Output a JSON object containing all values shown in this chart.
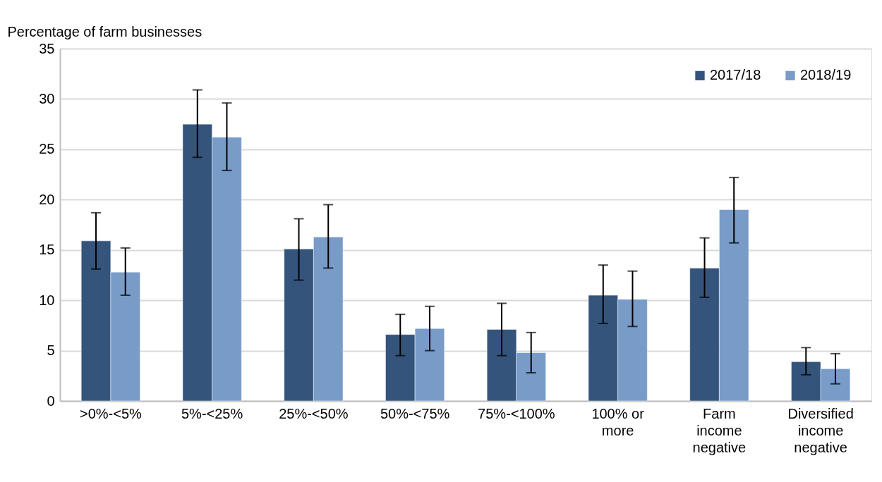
{
  "chart_data": {
    "type": "bar",
    "ylabel": "Percentage of farm businesses",
    "categories": [
      ">0%-<5%",
      "5%-<25%",
      "25%-<50%",
      "50%-<75%",
      "75%-<100%",
      "100% or more",
      "Farm income negative",
      "Diversified income negative"
    ],
    "series": [
      {
        "name": "2017/18",
        "color": "#34547c",
        "values": [
          15.9,
          27.5,
          15.1,
          6.6,
          7.1,
          10.5,
          13.2,
          3.9
        ],
        "errors": [
          [
            13.1,
            18.7
          ],
          [
            24.2,
            30.9
          ],
          [
            12.0,
            18.1
          ],
          [
            4.5,
            8.6
          ],
          [
            4.5,
            9.7
          ],
          [
            7.7,
            13.5
          ],
          [
            10.3,
            16.2
          ],
          [
            2.6,
            5.3
          ]
        ]
      },
      {
        "name": "2018/19",
        "color": "#789bc8",
        "values": [
          12.8,
          26.2,
          16.3,
          7.2,
          4.8,
          10.1,
          19.0,
          3.2
        ],
        "errors": [
          [
            10.5,
            15.2
          ],
          [
            22.9,
            29.6
          ],
          [
            13.2,
            19.5
          ],
          [
            5.0,
            9.4
          ],
          [
            2.8,
            6.8
          ],
          [
            7.4,
            12.9
          ],
          [
            15.7,
            22.2
          ],
          [
            1.7,
            4.7
          ]
        ]
      }
    ],
    "ylim": [
      0,
      35
    ],
    "yticks": [
      0,
      5,
      10,
      15,
      20,
      25,
      30,
      35
    ],
    "grid": "y",
    "legend": "top right"
  }
}
